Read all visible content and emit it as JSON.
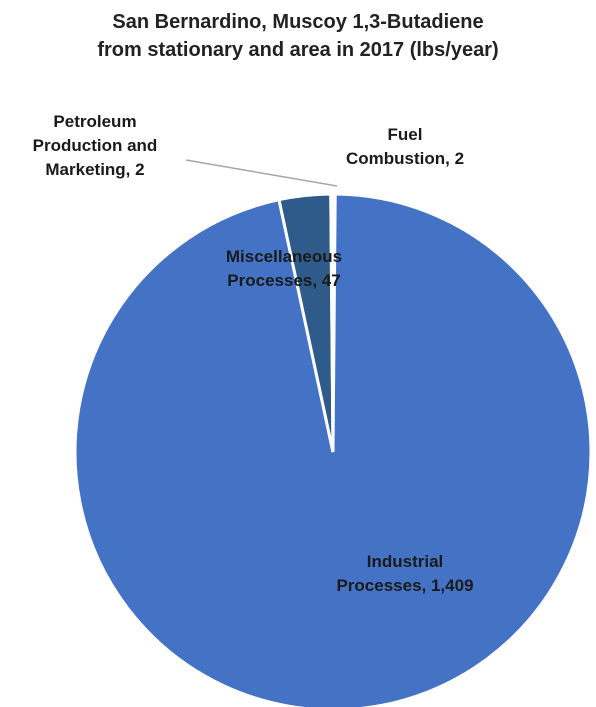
{
  "chart_data": {
    "type": "pie",
    "title": "San Bernardino, Muscoy 1,3-Butadiene from stationary and area in 2017 (lbs/year)",
    "title_lines": [
      "San Bernardino, Muscoy 1,3-Butadiene",
      "from stationary and area in 2017 (lbs/year)"
    ],
    "slices": [
      {
        "label_lines": [
          "Fuel",
          "Combustion, 2"
        ],
        "category": "Fuel Combustion",
        "value": 2,
        "color": "#ffffff"
      },
      {
        "label_lines": [
          "Industrial",
          "Processes, 1,409"
        ],
        "category": "Industrial Processes",
        "value": 1409,
        "color": "#4472c4"
      },
      {
        "label_lines": [
          "Miscellaneous",
          "Processes, 47"
        ],
        "category": "Miscellaneous Processes",
        "value": 47,
        "color": "#2e5b8a"
      },
      {
        "label_lines": [
          "Petroleum",
          "Production and",
          "Marketing, 2"
        ],
        "category": "Petroleum Production and Marketing",
        "value": 2,
        "color": "#ffffff"
      }
    ],
    "start_angle": "top",
    "direction": "clockwise",
    "legend": "none"
  }
}
